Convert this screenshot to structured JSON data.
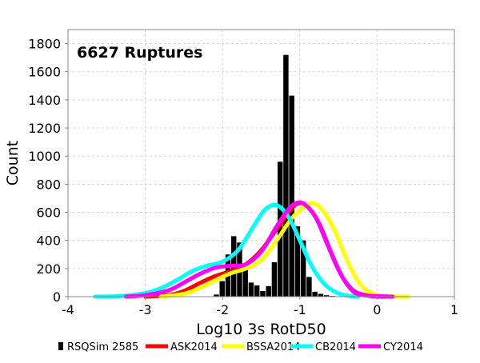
{
  "chart_data": {
    "type": "bar",
    "annotation": "6627 Ruptures",
    "xlabel": "Log10 3s RotD50",
    "ylabel": "Count",
    "xlim": [
      -4,
      1
    ],
    "ylim": [
      0,
      1900
    ],
    "xticks": [
      -4,
      -3,
      -2,
      -1,
      0,
      1
    ],
    "xtick_labels": [
      "-4",
      "-3",
      "-2",
      "-1",
      "0",
      "1"
    ],
    "yticks": [
      0,
      200,
      400,
      600,
      800,
      1000,
      1200,
      1400,
      1600,
      1800
    ],
    "ytick_labels": [
      "0",
      "200",
      "400",
      "600",
      "800",
      "1000",
      "1200",
      "1400",
      "1600",
      "1800"
    ],
    "grid": true,
    "legend_position": "bottom",
    "histogram": {
      "name": "RSQSim 2585",
      "color": "#000000",
      "bin_width": 0.075,
      "bin_centers": [
        -2.08,
        -2.005,
        -1.93,
        -1.855,
        -1.78,
        -1.705,
        -1.63,
        -1.555,
        -1.48,
        -1.405,
        -1.33,
        -1.255,
        -1.18,
        -1.105,
        -1.03,
        -0.955,
        -0.88,
        -0.805,
        -0.73,
        -0.655,
        -0.58,
        -0.505
      ],
      "counts": [
        15,
        110,
        300,
        430,
        385,
        190,
        100,
        80,
        40,
        75,
        245,
        960,
        1720,
        1430,
        500,
        400,
        140,
        35,
        20,
        10,
        5,
        3
      ]
    },
    "series": [
      {
        "name": "ASK2014",
        "color": "#ff0000",
        "type": "line",
        "x": [
          -3.0,
          -2.7,
          -2.5,
          -2.3,
          -2.1,
          -1.9,
          -1.7,
          -1.5,
          -1.3,
          -1.1,
          -1.0,
          -0.9,
          -0.75,
          -0.6,
          -0.45,
          -0.3,
          -0.1,
          0.1
        ],
        "y": [
          0,
          10,
          40,
          95,
          145,
          180,
          230,
          330,
          480,
          630,
          665,
          640,
          520,
          320,
          140,
          40,
          5,
          0
        ]
      },
      {
        "name": "BSSA2014",
        "color": "#ffff00",
        "type": "line",
        "x": [
          -2.8,
          -2.5,
          -2.3,
          -2.1,
          -1.9,
          -1.7,
          -1.5,
          -1.3,
          -1.1,
          -0.9,
          -0.8,
          -0.7,
          -0.55,
          -0.4,
          -0.25,
          -0.1,
          0.1,
          0.4
        ],
        "y": [
          0,
          20,
          60,
          115,
          165,
          200,
          260,
          400,
          560,
          655,
          660,
          610,
          470,
          270,
          110,
          30,
          5,
          0
        ]
      },
      {
        "name": "CB2014",
        "color": "#00ffff",
        "type": "line",
        "x": [
          -3.65,
          -3.3,
          -3.0,
          -2.8,
          -2.6,
          -2.4,
          -2.2,
          -2.0,
          -1.8,
          -1.6,
          -1.45,
          -1.3,
          -1.15,
          -1.0,
          -0.85,
          -0.7,
          -0.55,
          -0.4,
          -0.25
        ],
        "y": [
          0,
          5,
          25,
          60,
          115,
          180,
          220,
          250,
          330,
          500,
          620,
          650,
          570,
          400,
          220,
          100,
          35,
          8,
          0
        ]
      },
      {
        "name": "CY2014",
        "color": "#ff00ff",
        "type": "line",
        "x": [
          -3.25,
          -3.0,
          -2.7,
          -2.5,
          -2.3,
          -2.1,
          -1.9,
          -1.7,
          -1.5,
          -1.3,
          -1.15,
          -1.05,
          -0.95,
          -0.8,
          -0.65,
          -0.5,
          -0.35,
          -0.2,
          0.2
        ],
        "y": [
          0,
          10,
          45,
          100,
          160,
          205,
          220,
          230,
          320,
          500,
          620,
          665,
          660,
          570,
          380,
          190,
          60,
          12,
          0
        ]
      }
    ]
  }
}
